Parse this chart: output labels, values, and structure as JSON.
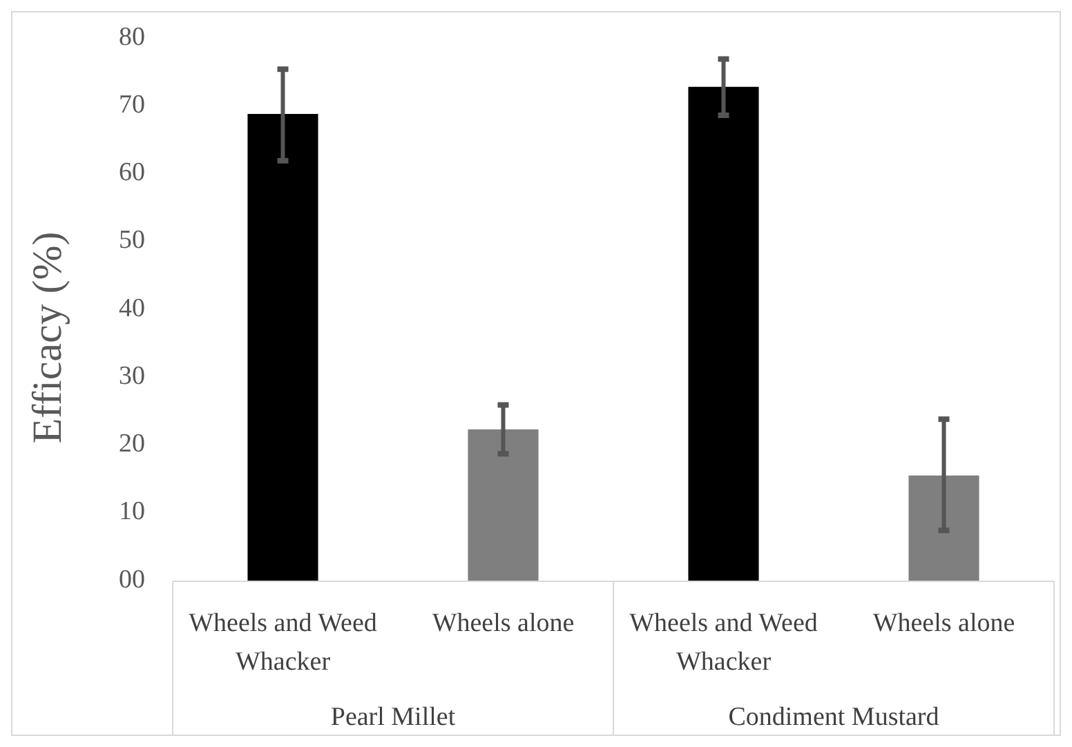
{
  "chart_data": {
    "type": "bar",
    "ylabel": "Efficacy (%)",
    "categories": [
      "Wheels and Weed Whacker",
      "Wheels alone",
      "Wheels and Weed Whacker",
      "Wheels alone"
    ],
    "values": [
      68.9,
      22.4,
      72.9,
      15.6
    ],
    "colors": [
      "#000000",
      "#7f7f7f",
      "#000000",
      "#7f7f7f"
    ],
    "errors": [
      [
        62,
        75.5
      ],
      [
        18.8,
        26
      ],
      [
        68.7,
        77
      ],
      [
        7.5,
        23.9
      ]
    ],
    "ylim": [
      0,
      80
    ],
    "yticks": [
      {
        "value": 0,
        "label": "00"
      },
      10,
      20,
      30,
      40,
      50,
      60,
      70,
      80
    ],
    "grid": false,
    "annotations": [
      "Pearl Millet",
      "Condiment Mustard"
    ]
  }
}
